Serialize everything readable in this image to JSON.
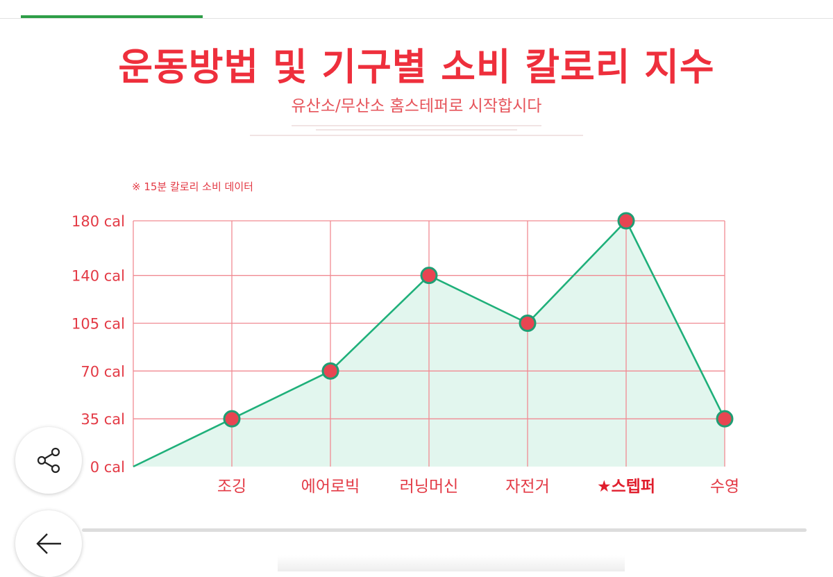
{
  "header": {
    "title": "운동방법 및 기구별 소비 칼로리 지수",
    "subtitle": "유산소/무산소 홈스테퍼로 시작합시다"
  },
  "chart_data": {
    "type": "line",
    "note": "※ 15분 칼로리 소비 데이터",
    "categories": [
      "",
      "조깅",
      "에어로빅",
      "러닝머신",
      "자전거",
      "★스텝퍼",
      "수영"
    ],
    "values": [
      0,
      35,
      70,
      140,
      105,
      180,
      35
    ],
    "y_ticks": [
      "0 cal",
      "35 cal",
      "70 cal",
      "105 cal",
      "140 cal",
      "180 cal"
    ],
    "y_tick_values": [
      0,
      35,
      70,
      105,
      140,
      180
    ],
    "ylim": [
      0,
      180
    ],
    "highlight_category": "★스텝퍼",
    "grid": true,
    "area_fill": true,
    "colors": {
      "line": "#1fb07a",
      "fill": "#e2f6ee",
      "grid": "#f08a92",
      "marker": "#e84552",
      "marker_ring": "#1f9e74",
      "text": "#e33a45"
    }
  },
  "buttons": {
    "share_icon": "share-icon",
    "back_icon": "arrow-left-icon"
  }
}
